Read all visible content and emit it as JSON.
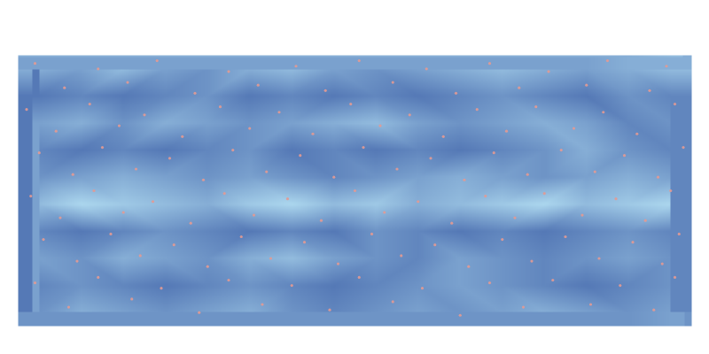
{
  "chart_data": {
    "type": "surface",
    "tick_labels": false,
    "xlim": [
      0,
      16
    ],
    "ylim": [
      0,
      10
    ],
    "zlim": [
      0,
      1
    ],
    "color_range": [
      "#3c5ea6",
      "#b8e4f6"
    ],
    "cells": [
      [
        0.6,
        0.5,
        0.7,
        0.5,
        0.4,
        0.6,
        0.7,
        0.5,
        0.4,
        0.5,
        0.6,
        0.7,
        0.6,
        0.5,
        0.6,
        0.7
      ],
      [
        0.2,
        0.3,
        0.2,
        0.3,
        0.4,
        0.2,
        0.3,
        0.2,
        0.3,
        0.2,
        0.3,
        0.4,
        0.3,
        0.2,
        0.4,
        0.3
      ],
      [
        0.5,
        0.6,
        0.4,
        0.6,
        0.5,
        0.4,
        0.5,
        0.6,
        0.7,
        0.5,
        0.4,
        0.5,
        0.6,
        0.5,
        0.3,
        0.4
      ],
      [
        0.3,
        0.2,
        0.3,
        0.2,
        0.3,
        0.4,
        0.2,
        0.3,
        0.2,
        0.3,
        0.2,
        0.3,
        0.4,
        0.6,
        0.4,
        0.3
      ],
      [
        0.4,
        0.5,
        0.6,
        0.5,
        0.4,
        0.5,
        0.4,
        0.3,
        0.4,
        0.5,
        0.6,
        0.5,
        0.4,
        0.5,
        0.6,
        0.5
      ],
      [
        0.7,
        0.9,
        0.8,
        0.7,
        0.6,
        0.8,
        0.9,
        0.7,
        0.8,
        0.6,
        0.7,
        0.8,
        0.9,
        0.7,
        0.8,
        0.9
      ],
      [
        0.3,
        0.2,
        0.3,
        0.4,
        0.3,
        0.2,
        0.3,
        0.2,
        0.4,
        0.3,
        0.2,
        0.3,
        0.2,
        0.3,
        0.4,
        0.3
      ],
      [
        0.5,
        0.4,
        0.6,
        0.5,
        0.4,
        0.6,
        0.7,
        0.5,
        0.4,
        0.3,
        0.5,
        0.4,
        0.3,
        0.4,
        0.5,
        0.4
      ],
      [
        0.3,
        0.4,
        0.3,
        0.2,
        0.3,
        0.4,
        0.3,
        0.2,
        0.3,
        0.4,
        0.5,
        0.4,
        0.3,
        0.2,
        0.3,
        0.4
      ],
      [
        0.4,
        0.6,
        0.5,
        0.4,
        0.5,
        0.6,
        0.4,
        0.3,
        0.4,
        0.5,
        0.4,
        0.5,
        0.6,
        0.5,
        0.4,
        0.5
      ]
    ],
    "points": {
      "color": "#e39a94",
      "x": [
        0.4,
        1.9,
        3.3,
        5.0,
        6.6,
        8.1,
        9.7,
        11.2,
        12.6,
        14.0,
        15.4,
        1.1,
        2.6,
        4.2,
        5.7,
        7.3,
        8.9,
        10.4,
        11.9,
        13.5,
        15.0,
        0.2,
        1.7,
        3.0,
        4.8,
        6.2,
        7.9,
        9.3,
        10.9,
        12.3,
        13.9,
        15.6,
        0.9,
        2.4,
        3.9,
        5.5,
        7.0,
        8.6,
        10.1,
        11.6,
        13.2,
        14.7,
        0.5,
        2.0,
        3.6,
        5.1,
        6.7,
        8.2,
        9.8,
        11.3,
        12.9,
        14.4,
        15.8,
        1.3,
        2.8,
        4.4,
        5.9,
        7.5,
        9.0,
        10.6,
        12.1,
        13.7,
        15.2,
        0.3,
        1.8,
        3.2,
        4.9,
        6.4,
        8.0,
        9.5,
        11.1,
        12.5,
        14.2,
        15.5,
        1.0,
        2.5,
        4.1,
        5.6,
        7.2,
        8.7,
        10.3,
        11.8,
        13.4,
        14.9,
        0.6,
        2.2,
        3.7,
        5.3,
        6.8,
        8.4,
        9.9,
        11.5,
        13.0,
        14.6,
        15.7,
        1.4,
        2.9,
        4.5,
        6.0,
        7.6,
        9.1,
        10.7,
        12.2,
        13.8,
        15.3,
        0.4,
        1.9,
        3.4,
        5.0,
        6.5,
        8.1,
        9.6,
        11.2,
        12.7,
        14.3,
        15.6,
        1.2,
        2.7,
        4.3,
        5.8,
        7.4,
        8.9,
        10.5,
        12.0,
        13.6,
        15.1
      ],
      "y": [
        0.3,
        0.5,
        0.2,
        0.6,
        0.4,
        0.2,
        0.5,
        0.3,
        0.6,
        0.2,
        0.4,
        1.2,
        1.0,
        1.4,
        1.1,
        1.3,
        1.0,
        1.4,
        1.2,
        1.1,
        1.3,
        2.0,
        1.8,
        2.2,
        1.9,
        2.1,
        1.8,
        2.2,
        2.0,
        1.9,
        2.1,
        1.8,
        2.8,
        2.6,
        3.0,
        2.7,
        2.9,
        2.6,
        3.0,
        2.8,
        2.7,
        2.9,
        3.6,
        3.4,
        3.8,
        3.5,
        3.7,
        3.4,
        3.8,
        3.6,
        3.5,
        3.7,
        3.4,
        4.4,
        4.2,
        4.6,
        4.3,
        4.5,
        4.2,
        4.6,
        4.4,
        4.3,
        4.5,
        5.2,
        5.0,
        5.4,
        5.1,
        5.3,
        5.0,
        5.4,
        5.2,
        5.1,
        5.3,
        5.0,
        6.0,
        5.8,
        6.2,
        5.9,
        6.1,
        5.8,
        6.2,
        6.0,
        5.9,
        6.1,
        6.8,
        6.6,
        7.0,
        6.7,
        6.9,
        6.6,
        7.0,
        6.8,
        6.7,
        6.9,
        6.6,
        7.6,
        7.4,
        7.8,
        7.5,
        7.7,
        7.4,
        7.8,
        7.6,
        7.5,
        7.7,
        8.4,
        8.2,
        8.6,
        8.3,
        8.5,
        8.2,
        8.6,
        8.4,
        8.3,
        8.5,
        8.2,
        9.3,
        9.0,
        9.5,
        9.2,
        9.4,
        9.1,
        9.6,
        9.3,
        9.2,
        9.4
      ]
    }
  }
}
